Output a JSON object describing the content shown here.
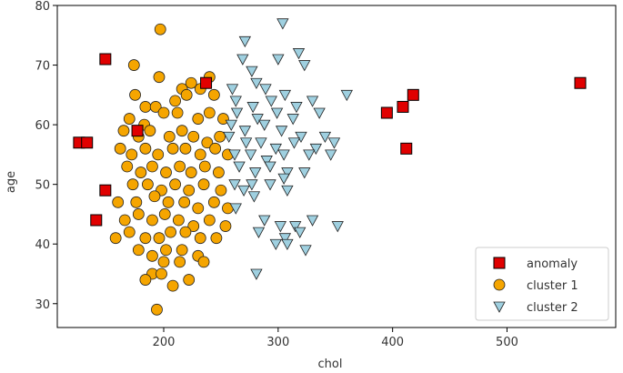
{
  "chart_data": {
    "type": "scatter",
    "title": "",
    "xlabel": "chol",
    "ylabel": "age",
    "xlim": [
      107,
      595
    ],
    "ylim": [
      26,
      80
    ],
    "xticks": [
      200,
      300,
      400,
      500
    ],
    "yticks": [
      30,
      40,
      50,
      60,
      70,
      80
    ],
    "grid": false,
    "legend_position": "lower-right",
    "series": [
      {
        "name": "anomaly",
        "marker": "square",
        "color": "#e00000",
        "edgecolor": "#000000",
        "points": [
          [
            126,
            57
          ],
          [
            133,
            57
          ],
          [
            149,
            71
          ],
          [
            149,
            49
          ],
          [
            141,
            44
          ],
          [
            177,
            59
          ],
          [
            237,
            67
          ],
          [
            395,
            62
          ],
          [
            409,
            63
          ],
          [
            418,
            65
          ],
          [
            412,
            56
          ],
          [
            564,
            67
          ]
        ]
      },
      {
        "name": "cluster 1",
        "marker": "circle",
        "color": "#f5a500",
        "edgecolor": "#222222",
        "points": [
          [
            197,
            76
          ],
          [
            174,
            70
          ],
          [
            196,
            68
          ],
          [
            216,
            66
          ],
          [
            224,
            67
          ],
          [
            240,
            68
          ],
          [
            175,
            65
          ],
          [
            184,
            63
          ],
          [
            193,
            63
          ],
          [
            210,
            64
          ],
          [
            220,
            65
          ],
          [
            232,
            66
          ],
          [
            244,
            65
          ],
          [
            170,
            61
          ],
          [
            183,
            60
          ],
          [
            200,
            62
          ],
          [
            212,
            62
          ],
          [
            230,
            61
          ],
          [
            240,
            62
          ],
          [
            252,
            61
          ],
          [
            165,
            59
          ],
          [
            178,
            58
          ],
          [
            188,
            59
          ],
          [
            205,
            58
          ],
          [
            216,
            59
          ],
          [
            226,
            58
          ],
          [
            238,
            57
          ],
          [
            249,
            58
          ],
          [
            162,
            56
          ],
          [
            172,
            55
          ],
          [
            184,
            56
          ],
          [
            195,
            55
          ],
          [
            208,
            56
          ],
          [
            219,
            56
          ],
          [
            232,
            55
          ],
          [
            245,
            56
          ],
          [
            256,
            55
          ],
          [
            168,
            53
          ],
          [
            180,
            52
          ],
          [
            190,
            53
          ],
          [
            202,
            52
          ],
          [
            214,
            53
          ],
          [
            224,
            52
          ],
          [
            236,
            53
          ],
          [
            248,
            52
          ],
          [
            173,
            50
          ],
          [
            186,
            50
          ],
          [
            198,
            49
          ],
          [
            210,
            50
          ],
          [
            222,
            49
          ],
          [
            235,
            50
          ],
          [
            250,
            49
          ],
          [
            160,
            47
          ],
          [
            176,
            47
          ],
          [
            192,
            48
          ],
          [
            204,
            47
          ],
          [
            218,
            47
          ],
          [
            230,
            46
          ],
          [
            244,
            47
          ],
          [
            256,
            46
          ],
          [
            166,
            44
          ],
          [
            178,
            45
          ],
          [
            190,
            44
          ],
          [
            201,
            45
          ],
          [
            213,
            44
          ],
          [
            226,
            43
          ],
          [
            240,
            44
          ],
          [
            254,
            43
          ],
          [
            170,
            42
          ],
          [
            184,
            41
          ],
          [
            196,
            41
          ],
          [
            206,
            42
          ],
          [
            219,
            42
          ],
          [
            232,
            41
          ],
          [
            246,
            41
          ],
          [
            158,
            41
          ],
          [
            178,
            39
          ],
          [
            190,
            38
          ],
          [
            202,
            39
          ],
          [
            216,
            39
          ],
          [
            230,
            38
          ],
          [
            200,
            37
          ],
          [
            214,
            37
          ],
          [
            235,
            37
          ],
          [
            190,
            35
          ],
          [
            198,
            35
          ],
          [
            184,
            34
          ],
          [
            208,
            33
          ],
          [
            222,
            34
          ],
          [
            194,
            29
          ]
        ]
      },
      {
        "name": "cluster 2",
        "marker": "triangle",
        "color": "#9fd0e0",
        "edgecolor": "#222222",
        "points": [
          [
            304,
            77
          ],
          [
            271,
            74
          ],
          [
            318,
            72
          ],
          [
            269,
            71
          ],
          [
            300,
            71
          ],
          [
            277,
            69
          ],
          [
            323,
            70
          ],
          [
            281,
            67
          ],
          [
            260,
            66
          ],
          [
            289,
            66
          ],
          [
            306,
            65
          ],
          [
            263,
            64
          ],
          [
            278,
            63
          ],
          [
            294,
            64
          ],
          [
            316,
            63
          ],
          [
            330,
            64
          ],
          [
            264,
            62
          ],
          [
            282,
            61
          ],
          [
            299,
            62
          ],
          [
            313,
            61
          ],
          [
            360,
            65
          ],
          [
            336,
            62
          ],
          [
            259,
            60
          ],
          [
            271,
            59
          ],
          [
            288,
            60
          ],
          [
            303,
            59
          ],
          [
            320,
            58
          ],
          [
            341,
            58
          ],
          [
            257,
            58
          ],
          [
            272,
            57
          ],
          [
            285,
            57
          ],
          [
            298,
            56
          ],
          [
            314,
            57
          ],
          [
            333,
            56
          ],
          [
            349,
            57
          ],
          [
            262,
            55
          ],
          [
            276,
            55
          ],
          [
            290,
            54
          ],
          [
            305,
            55
          ],
          [
            327,
            55
          ],
          [
            346,
            55
          ],
          [
            266,
            53
          ],
          [
            280,
            52
          ],
          [
            293,
            53
          ],
          [
            308,
            52
          ],
          [
            323,
            52
          ],
          [
            305,
            51
          ],
          [
            262,
            50
          ],
          [
            277,
            50
          ],
          [
            293,
            50
          ],
          [
            308,
            49
          ],
          [
            270,
            49
          ],
          [
            279,
            48
          ],
          [
            263,
            46
          ],
          [
            288,
            44
          ],
          [
            302,
            43
          ],
          [
            315,
            43
          ],
          [
            330,
            44
          ],
          [
            352,
            43
          ],
          [
            283,
            42
          ],
          [
            306,
            41
          ],
          [
            319,
            42
          ],
          [
            308,
            40
          ],
          [
            298,
            40
          ],
          [
            324,
            39
          ],
          [
            281,
            35
          ]
        ]
      }
    ]
  }
}
